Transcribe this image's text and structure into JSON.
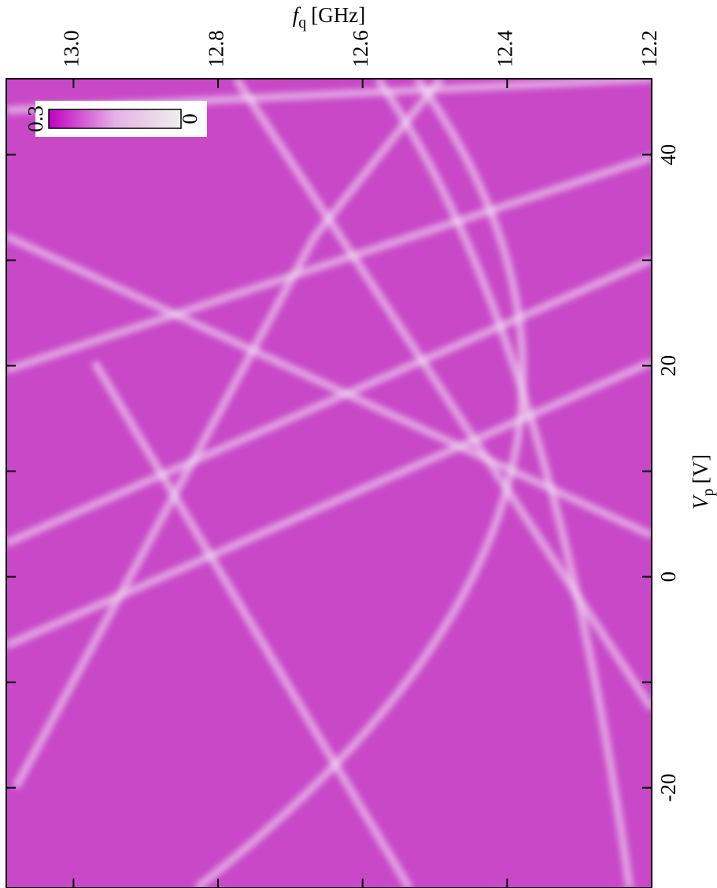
{
  "chart_data": {
    "type": "heatmap",
    "x_label": {
      "symbol": "f",
      "subscript": "q",
      "unit": "[GHz]"
    },
    "y_label": {
      "symbol": "V",
      "subscript": "p",
      "unit": "[V]"
    },
    "xlim": [
      13.093,
      12.2
    ],
    "xticks": [
      {
        "value": 13.0,
        "label": "13.0"
      },
      {
        "value": 12.8,
        "label": "12.8"
      },
      {
        "value": 12.6,
        "label": "12.6"
      },
      {
        "value": 12.4,
        "label": "12.4"
      },
      {
        "value": 12.2,
        "label": "12.2"
      }
    ],
    "ylim": [
      47.2,
      -29.5
    ],
    "yticks": [
      40,
      20,
      0,
      -20
    ],
    "yminor_ticks": [
      30,
      10,
      -10
    ],
    "colorbar": {
      "clim": [
        0.3,
        0
      ],
      "colors": [
        "#c000c0",
        "#eef0ec"
      ],
      "ticks": [
        {
          "value": 0.3,
          "label": "0.3"
        },
        0
      ]
    }
  }
}
